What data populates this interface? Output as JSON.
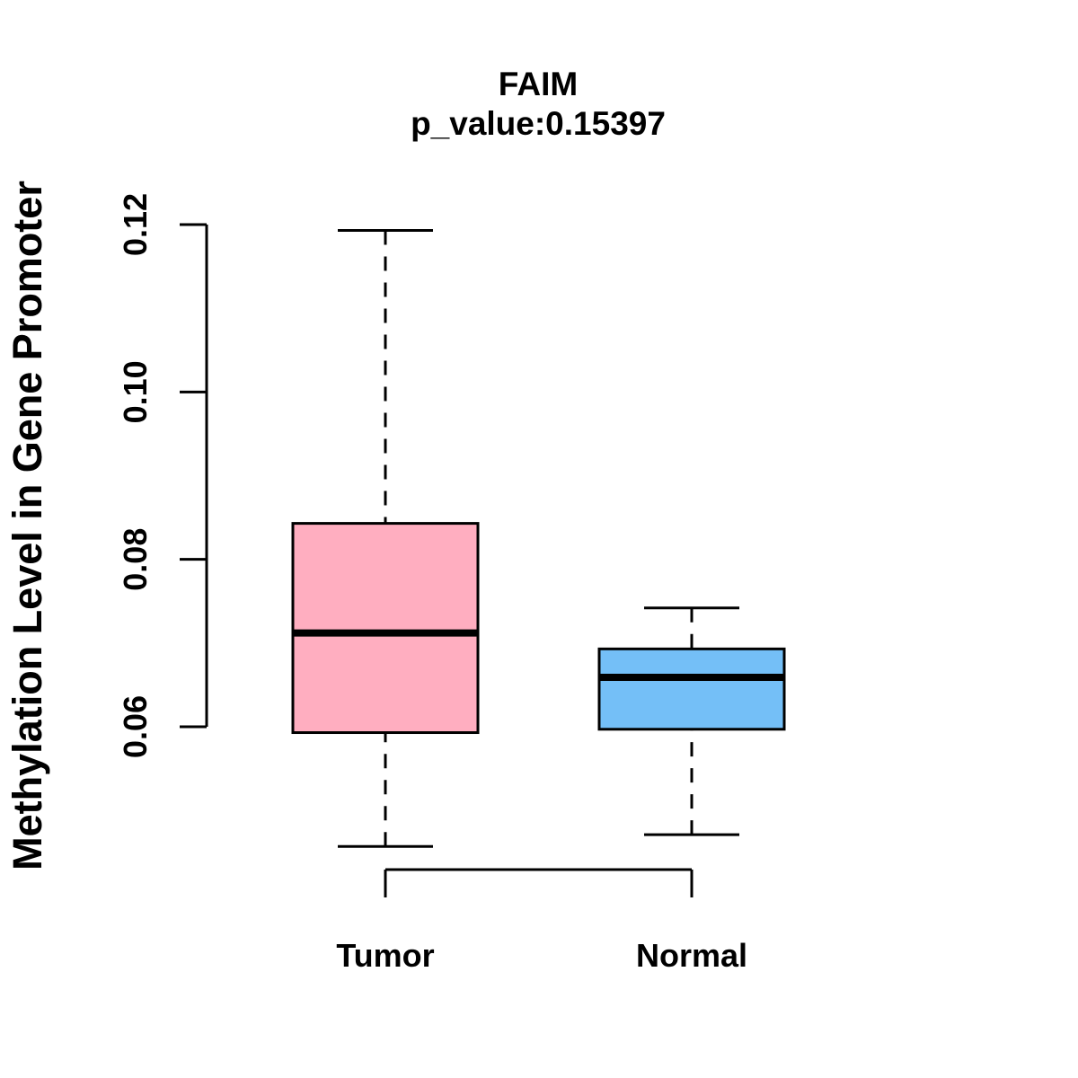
{
  "page": {
    "background_color": "#ffffff",
    "text_color": "#000000"
  },
  "chart_data": {
    "type": "boxplot",
    "title": "FAIM",
    "subtitle": "p_value:0.15397",
    "p_value": "0.15397",
    "gene": "FAIM",
    "xlabel": "",
    "ylabel": "Methylation Level in Gene Promoter",
    "ylim": [
      0.06,
      0.12
    ],
    "grid": false,
    "legend": false,
    "whisker_style": "dashed",
    "box_border_color": "#000000",
    "median_color": "#000000",
    "yticks": [
      {
        "value": 0.06,
        "label": "0.06"
      },
      {
        "value": 0.08,
        "label": "0.08"
      },
      {
        "value": 0.1,
        "label": "0.10"
      },
      {
        "value": 0.12,
        "label": "0.12"
      }
    ],
    "categories": [
      "Tumor",
      "Normal"
    ],
    "series": [
      {
        "name": "Tumor",
        "color": "#FFAEC0",
        "whisker_low": 0.0457,
        "q1": 0.0593,
        "median": 0.0712,
        "q3": 0.0843,
        "whisker_high": 0.1193
      },
      {
        "name": "Normal",
        "color": "#74BFF7",
        "whisker_low": 0.0471,
        "q1": 0.0597,
        "median": 0.0659,
        "q3": 0.0693,
        "whisker_high": 0.0742
      }
    ]
  }
}
